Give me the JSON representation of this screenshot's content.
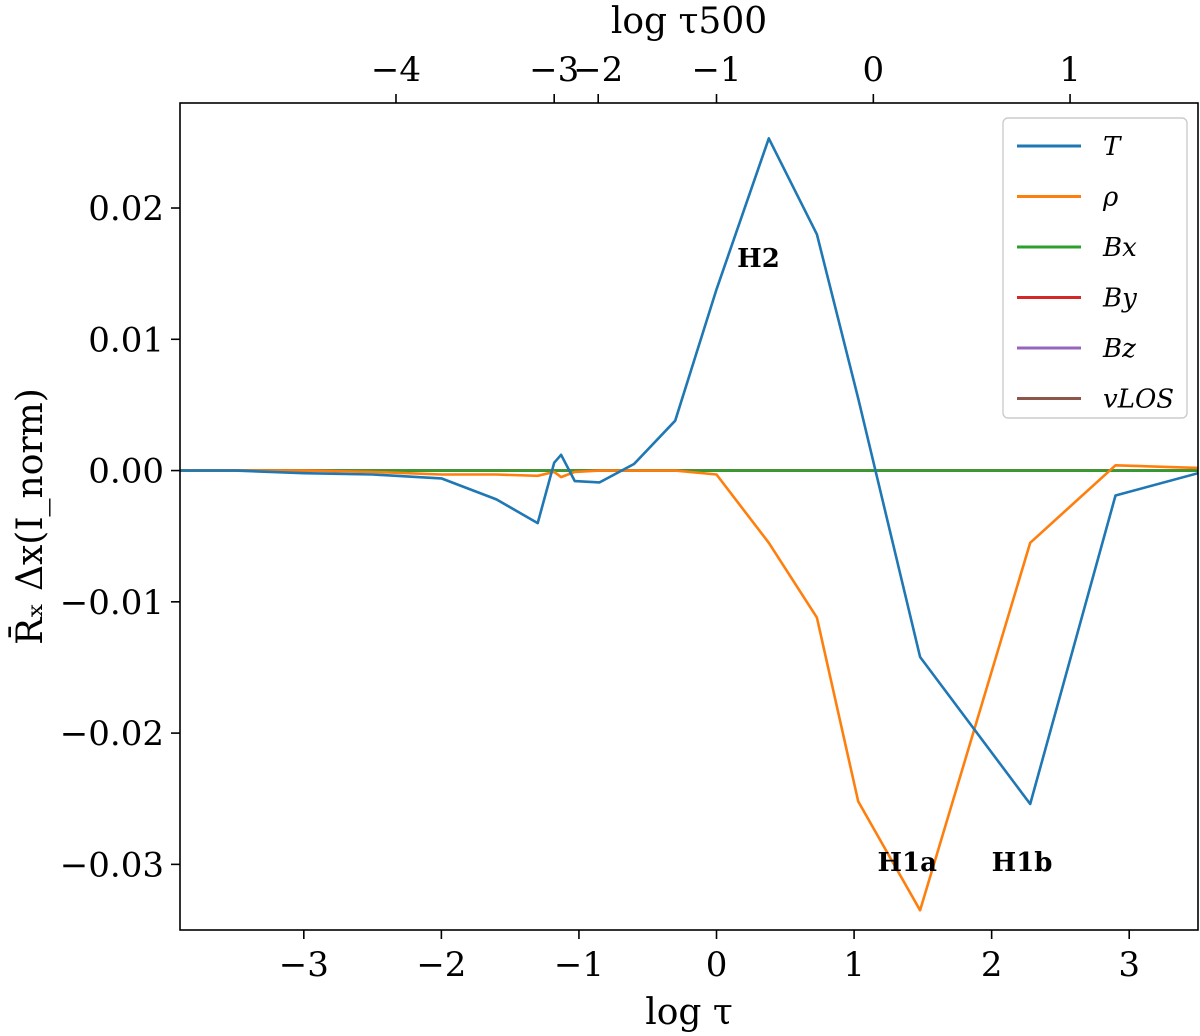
{
  "chart_data": {
    "type": "line",
    "xlabel": "log τ",
    "ylabel": "R̄ₓ Δx(I_norm)",
    "top_xlabel": "log τ500",
    "xlim": [
      -3.9,
      3.5
    ],
    "ylim": [
      -0.035,
      0.028
    ],
    "grid": false,
    "legend_position": "top-right",
    "x_ticks": [
      -3,
      -2,
      -1,
      0,
      1,
      2,
      3
    ],
    "x_tick_labels": [
      "−3",
      "−2",
      "−1",
      "0",
      "1",
      "2",
      "3"
    ],
    "y_ticks": [
      0.02,
      0.01,
      0.0,
      -0.01,
      -0.02,
      -0.03
    ],
    "y_tick_labels": [
      "0.02",
      "0.01",
      "0.00",
      "−0.01",
      "−0.02",
      "−0.03"
    ],
    "top_ticks": [
      {
        "label": "−4",
        "at_log_tau": -2.33
      },
      {
        "label": "−3",
        "at_log_tau": -1.18
      },
      {
        "label": "−2",
        "at_log_tau": -0.86
      },
      {
        "label": "−1",
        "at_log_tau": 0.0
      },
      {
        "label": "0",
        "at_log_tau": 1.14
      },
      {
        "label": "1",
        "at_log_tau": 2.57
      }
    ],
    "x": [
      -3.9,
      -3.5,
      -3.0,
      -2.5,
      -2.0,
      -1.6,
      -1.3,
      -1.18,
      -1.13,
      -1.03,
      -0.85,
      -0.6,
      -0.3,
      0.0,
      0.38,
      0.73,
      1.03,
      1.48,
      2.28,
      2.9,
      3.5
    ],
    "series": [
      {
        "name": "T",
        "color": "#1f77b4",
        "values": [
          0.0,
          0.0,
          -0.0002,
          -0.0003,
          -0.0006,
          -0.0022,
          -0.004,
          0.0006,
          0.0012,
          -0.0008,
          -0.0009,
          0.0005,
          0.0038,
          0.0138,
          0.0253,
          0.018,
          0.0055,
          -0.0142,
          -0.0254,
          -0.0019,
          -0.0002
        ]
      },
      {
        "name": "ρ",
        "color": "#ff7f0e",
        "values": [
          0.0,
          0.0,
          0.0,
          -0.0001,
          -0.0003,
          -0.0003,
          -0.0004,
          -0.0001,
          -0.0005,
          -0.0001,
          0.0,
          0.0,
          0.0,
          -0.0003,
          -0.0055,
          -0.0112,
          -0.0252,
          -0.0335,
          -0.0055,
          0.0004,
          0.0002
        ]
      },
      {
        "name": "Bx",
        "color": "#2ca02c",
        "values": [
          0.0,
          0.0,
          0.0,
          0.0,
          0.0,
          0.0,
          0.0,
          0.0,
          0.0,
          0.0,
          0.0,
          0.0,
          0.0,
          0.0,
          0.0,
          0.0,
          0.0,
          0.0,
          0.0,
          0.0,
          0.0
        ]
      },
      {
        "name": "By",
        "color": "#d62728",
        "values": [
          0.0,
          0.0,
          0.0,
          0.0,
          0.0,
          0.0,
          0.0,
          0.0,
          0.0,
          0.0,
          0.0,
          0.0,
          0.0,
          0.0,
          0.0,
          0.0,
          0.0,
          0.0,
          0.0,
          0.0,
          0.0
        ]
      },
      {
        "name": "Bz",
        "color": "#9467bd",
        "values": [
          0.0,
          0.0,
          0.0,
          0.0,
          0.0,
          0.0,
          0.0,
          0.0,
          0.0,
          0.0,
          0.0,
          0.0,
          0.0,
          0.0,
          0.0,
          0.0,
          0.0,
          0.0,
          0.0,
          0.0,
          0.0
        ]
      },
      {
        "name": "vLOS",
        "color": "#8c564b",
        "values": [
          0.0,
          0.0,
          0.0,
          0.0,
          0.0,
          0.0,
          0.0,
          0.0,
          0.0,
          0.0,
          0.0,
          0.0,
          0.0,
          0.0,
          0.0,
          0.0,
          0.0,
          0.0,
          0.0,
          0.0,
          0.0
        ]
      }
    ],
    "annotations": [
      {
        "text": "H2",
        "x": 0.15,
        "y": 0.0155
      },
      {
        "text": "H1a",
        "x": 1.17,
        "y": -0.0305
      },
      {
        "text": "H1b",
        "x": 2.0,
        "y": -0.0305
      }
    ]
  }
}
